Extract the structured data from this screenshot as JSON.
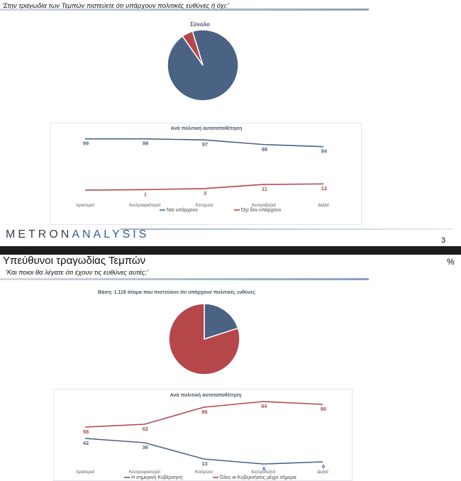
{
  "slide1": {
    "question": "'Στην τραγωδία των Τεμπών πιστεύετε ότι υπάρχουν πολιτικές ευθύνες ή όχι;'",
    "brand": {
      "part1": "METRON",
      "part2": "ANALYSIS"
    },
    "page_number": "3"
  },
  "slide2": {
    "title": "Υπεύθυνοι τραγωδίας Τεμπών",
    "question": "'Και ποιοι θα λέγατε ότι έχουν τις ευθύνες αυτές;'",
    "percent_sign": "%"
  },
  "colors": {
    "blue": "#4a6283",
    "red": "#b5474b",
    "grid": "#e3e6ea"
  },
  "chart_data": [
    {
      "type": "pie",
      "title": "Σύνολο",
      "slices": [
        {
          "name": "Ναι υπάρχουν",
          "value": 95,
          "color": "#4a6283"
        },
        {
          "name": "Όχι δεν υπάρχουν",
          "value": 5,
          "color": "#b5474b"
        }
      ]
    },
    {
      "type": "line",
      "title": "Ανά πολιτική αυτοτοποθέτηση",
      "categories": [
        "Αριστεροί",
        "Κεντροαριστεροί",
        "Κεντρώοι",
        "Κεντροδεξιοί",
        "Δεξιοί"
      ],
      "series": [
        {
          "name": "Ναι υπάρχουν",
          "values": [
            99,
            99,
            97,
            88,
            84
          ],
          "color": "#4a6283"
        },
        {
          "name": "Όχι δεν υπάρχουν",
          "values": [
            null,
            1,
            3,
            11,
            12
          ],
          "start_value": 0,
          "color": "#b5474b"
        }
      ],
      "ylim": [
        0,
        100
      ]
    },
    {
      "type": "pie",
      "title": "Βάση: 1.118 άτομα που πιστεύουν ότι υπάρχουν πολιτικές ευθύνες",
      "slices": [
        {
          "name": "Η σημερινή Κυβέρνηση",
          "value": 20,
          "color": "#4a6283"
        },
        {
          "name": "Όλες οι Κυβερνήσεις μέχρι σήμερα",
          "value": 80,
          "color": "#b5474b"
        }
      ]
    },
    {
      "type": "line",
      "title": "Ανά πολιτική αυτοτοποθέτηση",
      "categories": [
        "Αριστεροί",
        "Κεντροαριστεροί",
        "Κεντρώοι",
        "Κεντροδεξιοί",
        "Δεξιοί"
      ],
      "series": [
        {
          "name": "Η σημερινή Κυβέρνηση",
          "values": [
            42,
            36,
            13,
            6,
            9
          ],
          "color": "#4a6283"
        },
        {
          "name": "Όλες οι Κυβερνήσεις μέχρι σήμερα",
          "values": [
            58,
            62,
            86,
            94,
            90
          ],
          "color": "#b5474b"
        }
      ],
      "ylim": [
        0,
        100
      ]
    }
  ]
}
